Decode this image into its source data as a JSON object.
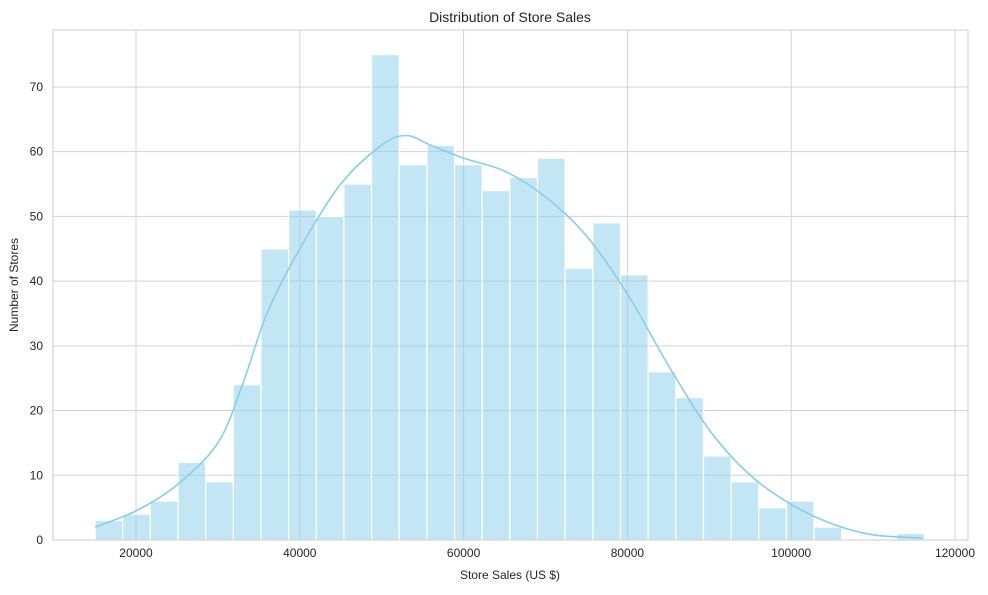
{
  "chart_data": {
    "type": "bar",
    "subtype": "histogram",
    "title": "Distribution of Store Sales",
    "xlabel": "Store Sales (US $)",
    "ylabel": "Number of Stores",
    "xlim": [
      9866,
      121590
    ],
    "ylim": [
      0,
      78.8
    ],
    "grid": true,
    "bin_range": [
      15000,
      116300
    ],
    "bin_counts": [
      3,
      4,
      6,
      12,
      9,
      24,
      45,
      51,
      50,
      55,
      75,
      58,
      61,
      58,
      54,
      56,
      59,
      42,
      49,
      41,
      26,
      22,
      13,
      9,
      5,
      6,
      2,
      0,
      0,
      1
    ],
    "x_ticks": [
      20000,
      40000,
      60000,
      80000,
      100000,
      120000
    ],
    "y_ticks": [
      0,
      10,
      20,
      30,
      40,
      50,
      60,
      70
    ],
    "kde": {
      "x": [
        15000,
        20000,
        25000,
        30000,
        33000,
        36000,
        40000,
        45000,
        50000,
        53000,
        56000,
        60000,
        65000,
        70000,
        75000,
        80000,
        85000,
        90000,
        95000,
        100000,
        105000,
        110000,
        116000
      ],
      "y": [
        2,
        4.5,
        8.5,
        15,
        24,
        35,
        45,
        55,
        61,
        62.5,
        61,
        59,
        57,
        53,
        47,
        38,
        27,
        17,
        10,
        5.5,
        2.5,
        0.8,
        0.3
      ]
    },
    "colors": {
      "bar": "#87ceeb",
      "bar_opacity": 0.5,
      "kde": "#87ceeb",
      "grid": "#d3d3d3",
      "spine": "#cccccc"
    }
  }
}
